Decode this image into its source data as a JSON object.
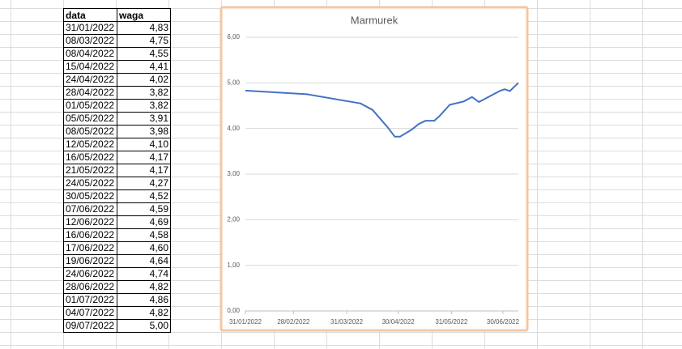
{
  "table": {
    "header": [
      "data",
      "waga"
    ],
    "rows": [
      [
        "31/01/2022",
        "4,83"
      ],
      [
        "08/03/2022",
        "4,75"
      ],
      [
        "08/04/2022",
        "4,55"
      ],
      [
        "15/04/2022",
        "4,41"
      ],
      [
        "24/04/2022",
        "4,02"
      ],
      [
        "28/04/2022",
        "3,82"
      ],
      [
        "01/05/2022",
        "3,82"
      ],
      [
        "05/05/2022",
        "3,91"
      ],
      [
        "08/05/2022",
        "3,98"
      ],
      [
        "12/05/2022",
        "4,10"
      ],
      [
        "16/05/2022",
        "4,17"
      ],
      [
        "21/05/2022",
        "4,17"
      ],
      [
        "24/05/2022",
        "4,27"
      ],
      [
        "30/05/2022",
        "4,52"
      ],
      [
        "07/06/2022",
        "4,59"
      ],
      [
        "12/06/2022",
        "4,69"
      ],
      [
        "16/06/2022",
        "4,58"
      ],
      [
        "17/06/2022",
        "4,60"
      ],
      [
        "19/06/2022",
        "4,64"
      ],
      [
        "24/06/2022",
        "4,74"
      ],
      [
        "28/06/2022",
        "4,82"
      ],
      [
        "01/07/2022",
        "4,86"
      ],
      [
        "04/07/2022",
        "4,82"
      ],
      [
        "09/07/2022",
        "5,00"
      ]
    ]
  },
  "chart_data": {
    "type": "line",
    "title": "Marmurek",
    "x": [
      "31/01/2022",
      "08/03/2022",
      "08/04/2022",
      "15/04/2022",
      "24/04/2022",
      "28/04/2022",
      "01/05/2022",
      "05/05/2022",
      "08/05/2022",
      "12/05/2022",
      "16/05/2022",
      "21/05/2022",
      "24/05/2022",
      "30/05/2022",
      "07/06/2022",
      "12/06/2022",
      "16/06/2022",
      "17/06/2022",
      "19/06/2022",
      "24/06/2022",
      "28/06/2022",
      "01/07/2022",
      "04/07/2022",
      "09/07/2022"
    ],
    "series": [
      {
        "color": "#4472c4",
        "values": [
          4.83,
          4.75,
          4.55,
          4.41,
          4.02,
          3.82,
          3.82,
          3.91,
          3.98,
          4.1,
          4.17,
          4.17,
          4.27,
          4.52,
          4.59,
          4.69,
          4.58,
          4.6,
          4.64,
          4.74,
          4.82,
          4.86,
          4.82,
          5.0
        ]
      }
    ],
    "xlim": [
      "31/01/2022",
      "09/07/2022"
    ],
    "xticks": [
      "31/01/2022",
      "28/02/2022",
      "31/03/2022",
      "30/04/2022",
      "31/05/2022",
      "30/06/2022"
    ],
    "ylim": [
      0,
      6
    ],
    "yticks": [
      {
        "value": 0,
        "label": "0,00"
      },
      {
        "value": 1,
        "label": "1,00"
      },
      {
        "value": 2,
        "label": "2,00"
      },
      {
        "value": 3,
        "label": "3,00"
      },
      {
        "value": 4,
        "label": "4,00"
      },
      {
        "value": 5,
        "label": "5,00"
      },
      {
        "value": 6,
        "label": "6,00"
      }
    ],
    "grid": true
  }
}
